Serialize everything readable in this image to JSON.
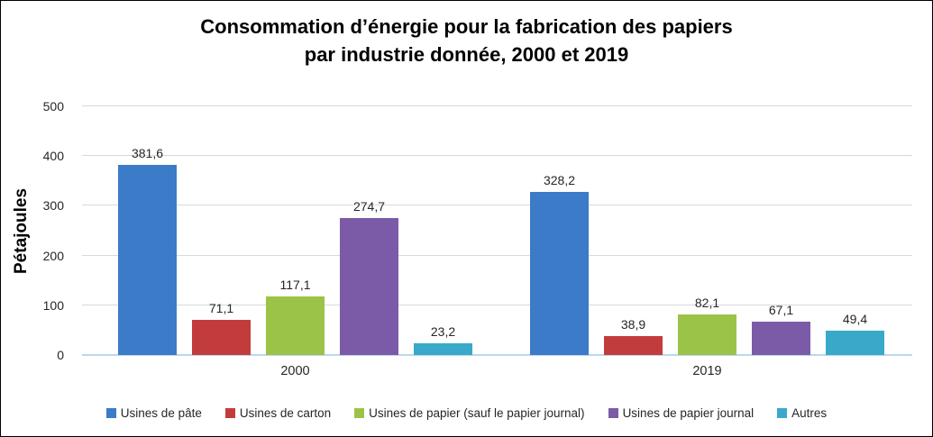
{
  "chart_data": {
    "type": "bar",
    "title": "Consommation d’énergie pour la fabrication des papiers par industrie donnée, 2000 et 2019",
    "title_lines": [
      "Consommation d’énergie pour la fabrication des papiers",
      "par industrie donnée, 2000 et 2019"
    ],
    "ylabel": "Pétajoules",
    "xlabel": "",
    "ylim": [
      0,
      500
    ],
    "yticks": [
      0,
      100,
      200,
      300,
      400,
      500
    ],
    "grid": true,
    "legend_position": "bottom",
    "categories": [
      "2000",
      "2019"
    ],
    "series": [
      {
        "name": "Usines de pâte",
        "color": "#3B7BC8",
        "values": [
          381.6,
          328.2
        ],
        "labels": [
          "381,6",
          "328,2"
        ]
      },
      {
        "name": "Usines de carton",
        "color": "#C33C3C",
        "values": [
          71.1,
          38.9
        ],
        "labels": [
          "71,1",
          "38,9"
        ]
      },
      {
        "name": "Usines de papier (sauf le papier journal)",
        "color": "#9BC348",
        "values": [
          117.1,
          82.1
        ],
        "labels": [
          "117,1",
          "82,1"
        ]
      },
      {
        "name": "Usines de papier journal",
        "color": "#7B5BA8",
        "values": [
          274.7,
          67.1
        ],
        "labels": [
          "274,7",
          "67,1"
        ]
      },
      {
        "name": "Autres",
        "color": "#38A9C9",
        "values": [
          23.2,
          49.4
        ],
        "labels": [
          "23,2",
          "49,4"
        ]
      }
    ],
    "colors": {
      "gridline": "#D9D9D9",
      "axis_line": "#BDD7EE",
      "text": "#262626",
      "title_text": "#000000"
    },
    "decimal_separator": ","
  }
}
